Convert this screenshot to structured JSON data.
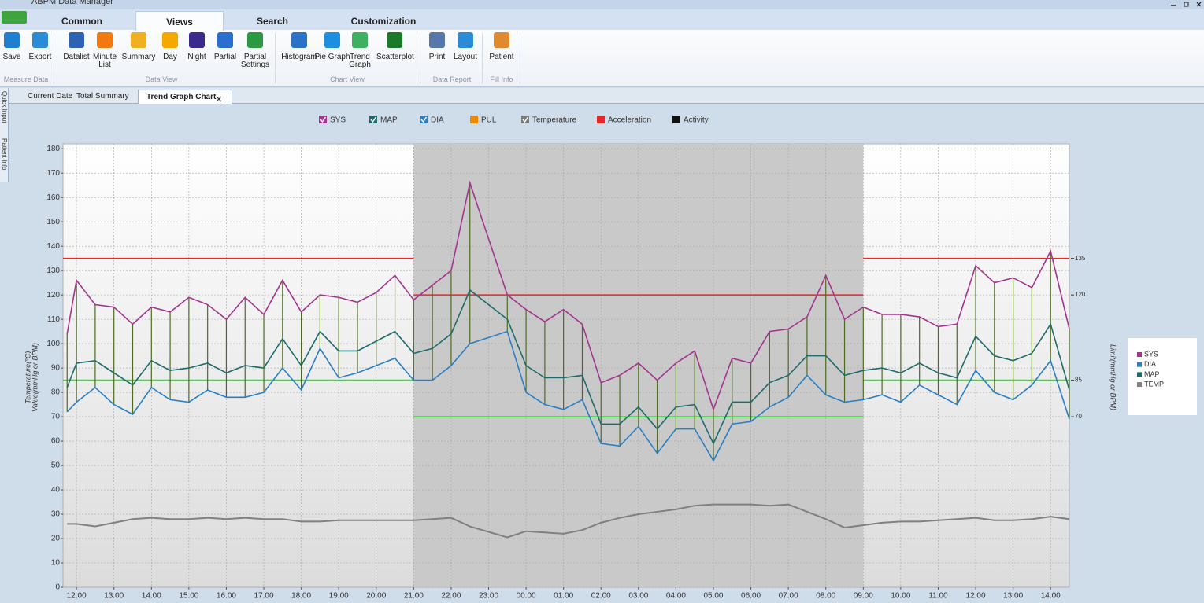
{
  "window": {
    "title": "ABPM Data Manager"
  },
  "ribbon": {
    "tabs": [
      "Common",
      "Views",
      "Search",
      "Customization"
    ],
    "active_tab": 1,
    "groups": [
      {
        "label": "Measure Data",
        "buttons": [
          "Save",
          "Export"
        ]
      },
      {
        "label": "Data View",
        "buttons": [
          "Datalist",
          "Minute List",
          "Summary",
          "Day",
          "Night",
          "Partial",
          "Partial Settings"
        ]
      },
      {
        "label": "Chart View",
        "buttons": [
          "Histogram",
          "Pie Graph",
          "Trend Graph",
          "Scatterplot"
        ]
      },
      {
        "label": "Data Report",
        "buttons": [
          "Print",
          "Layout"
        ]
      },
      {
        "label": "Fill Info",
        "buttons": [
          "Patient"
        ]
      }
    ]
  },
  "side_tabs": [
    "Quick Input",
    "Patient Info"
  ],
  "doc_tabs": [
    "Current Date",
    "Total Summary",
    "Trend Graph Chart"
  ],
  "active_doc_tab": 2,
  "chart_data": {
    "type": "line",
    "toggles": [
      {
        "name": "SYS",
        "color": "#a3358f",
        "checked": true
      },
      {
        "name": "MAP",
        "color": "#1f6b6b",
        "checked": true
      },
      {
        "name": "DIA",
        "color": "#2a7fc4",
        "checked": true
      },
      {
        "name": "PUL",
        "color": "#f08a00",
        "checked": false
      },
      {
        "name": "Temperature",
        "color": "#7a7a7a",
        "checked": true
      },
      {
        "name": "Acceleration",
        "color": "#e8262a",
        "checked": false
      },
      {
        "name": "Activity",
        "color": "#111111",
        "checked": false
      }
    ],
    "y_label": [
      "Temperature(°C)",
      "Value(mmHg or BPM)"
    ],
    "y2_label": "Limit(mmHg or BPM)",
    "x": [
      11.75,
      12,
      12.5,
      13,
      13.5,
      14,
      14.5,
      15,
      15.5,
      16,
      16.5,
      17,
      17.5,
      18,
      18.5,
      19,
      19.5,
      20,
      20.5,
      21,
      21.5,
      22,
      22.5,
      23.5,
      24,
      24.5,
      25,
      25.5,
      26,
      26.5,
      27,
      27.5,
      28,
      28.5,
      29,
      29.5,
      30,
      30.5,
      31,
      31.5,
      32,
      32.5,
      33,
      33.5,
      34,
      34.5,
      35,
      35.5,
      36,
      36.5,
      37,
      37.5,
      38,
      38.5
    ],
    "series": [
      {
        "name": "SYS",
        "color": "#a3358f",
        "values": [
          104,
          126,
          116,
          115,
          108,
          115,
          113,
          119,
          116,
          110,
          119,
          112,
          126,
          113,
          120,
          119,
          117,
          121,
          128,
          118,
          124,
          130,
          166,
          120,
          114,
          109,
          114,
          108,
          84,
          87,
          92,
          85,
          92,
          97,
          73,
          94,
          92,
          105,
          106,
          111,
          128,
          110,
          115,
          112,
          112,
          111,
          107,
          108,
          132,
          125,
          127,
          123,
          138,
          106
        ]
      },
      {
        "name": "DIA",
        "color": "#2a7fc4",
        "values": [
          72,
          76,
          82,
          75,
          71,
          82,
          77,
          76,
          81,
          78,
          78,
          80,
          90,
          81,
          98,
          86,
          88,
          91,
          94,
          85,
          85,
          91,
          100,
          105,
          80,
          75,
          73,
          77,
          59,
          58,
          66,
          55,
          65,
          65,
          52,
          67,
          68,
          74,
          78,
          87,
          79,
          76,
          77,
          79,
          76,
          83,
          79,
          75,
          89,
          80,
          77,
          83,
          93,
          69
        ]
      },
      {
        "name": "MAP",
        "color": "#1f6b6b",
        "values": [
          82,
          92,
          93,
          88,
          83,
          93,
          89,
          90,
          92,
          88,
          91,
          90,
          102,
          91,
          105,
          97,
          97,
          101,
          105,
          96,
          98,
          104,
          122,
          110,
          91,
          86,
          86,
          87,
          67,
          67,
          74,
          65,
          74,
          75,
          59,
          76,
          76,
          84,
          87,
          95,
          95,
          87,
          89,
          90,
          88,
          92,
          88,
          86,
          103,
          95,
          93,
          96,
          108,
          81
        ]
      },
      {
        "name": "TEMP",
        "color": "#808080",
        "values": [
          26,
          26,
          25,
          26.5,
          28,
          28.5,
          28,
          28,
          28.5,
          28,
          28.5,
          28,
          28,
          27,
          27,
          27.5,
          27.5,
          27.5,
          27.5,
          27.5,
          28,
          28.5,
          25,
          20.5,
          23,
          22.5,
          22,
          23.5,
          26.5,
          28.5,
          30,
          31,
          32,
          33.5,
          34,
          34,
          34,
          33.5,
          34,
          31,
          28,
          24.5,
          25.5,
          26.5,
          27,
          27,
          27.5,
          28,
          28.5,
          27.5,
          27.5,
          28,
          29,
          28
        ]
      }
    ],
    "connector_color": "#4e6b22",
    "night": [
      21,
      33
    ],
    "limits": {
      "day": {
        "sys": 135,
        "dia": 85
      },
      "night": {
        "sys": 120,
        "dia": 70
      }
    },
    "limit_colors": {
      "sys": "#e8262a",
      "dia": "#33e033"
    },
    "xlim": [
      11.64,
      38.5
    ],
    "xticks": [
      {
        "value": 12,
        "label": "12:00"
      },
      {
        "value": 13,
        "label": "13:00"
      },
      {
        "value": 14,
        "label": "14:00"
      },
      {
        "value": 15,
        "label": "15:00"
      },
      {
        "value": 16,
        "label": "16:00"
      },
      {
        "value": 17,
        "label": "17:00"
      },
      {
        "value": 18,
        "label": "18:00"
      },
      {
        "value": 19,
        "label": "19:00"
      },
      {
        "value": 20,
        "label": "20:00"
      },
      {
        "value": 21,
        "label": "21:00"
      },
      {
        "value": 22,
        "label": "22:00"
      },
      {
        "value": 23,
        "label": "23:00"
      },
      {
        "value": 24,
        "label": "00:00"
      },
      {
        "value": 25,
        "label": "01:00"
      },
      {
        "value": 26,
        "label": "02:00"
      },
      {
        "value": 27,
        "label": "03:00"
      },
      {
        "value": 28,
        "label": "04:00"
      },
      {
        "value": 29,
        "label": "05:00"
      },
      {
        "value": 30,
        "label": "06:00"
      },
      {
        "value": 31,
        "label": "07:00"
      },
      {
        "value": 32,
        "label": "08:00"
      },
      {
        "value": 33,
        "label": "09:00"
      },
      {
        "value": 34,
        "label": "10:00"
      },
      {
        "value": 35,
        "label": "11:00"
      },
      {
        "value": 36,
        "label": "12:00"
      },
      {
        "value": 37,
        "label": "13:00"
      },
      {
        "value": 38,
        "label": "14:00"
      }
    ],
    "ylim": [
      0,
      182
    ],
    "yticks": [
      0,
      10,
      20,
      30,
      40,
      50,
      60,
      70,
      80,
      90,
      100,
      110,
      120,
      130,
      140,
      150,
      160,
      170,
      180
    ],
    "y2lim": [
      0,
      182
    ],
    "y2ticks": [
      135,
      120,
      85,
      70
    ],
    "grid": true
  }
}
